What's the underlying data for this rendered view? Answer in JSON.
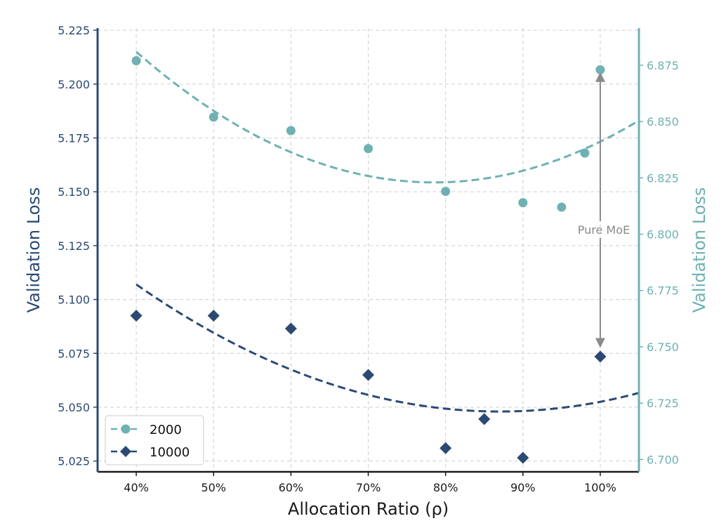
{
  "chart_data": {
    "type": "scatter",
    "title": "",
    "xlabel": "Allocation Ratio (ρ)",
    "ylabel_left": "Validation Loss",
    "ylabel_right": "Validation Loss",
    "x_ticks": [
      40,
      50,
      60,
      70,
      80,
      90,
      100
    ],
    "x_tick_labels": [
      "40%",
      "50%",
      "60%",
      "70%",
      "80%",
      "90%",
      "100%"
    ],
    "xlim": [
      35,
      105
    ],
    "ylim_left": [
      5.02,
      5.226
    ],
    "ylim_right": [
      6.6945,
      6.8915
    ],
    "y_left_ticks": [
      "5.025",
      "5.050",
      "5.075",
      "5.100",
      "5.125",
      "5.150",
      "5.175",
      "5.200",
      "5.225"
    ],
    "y_right_ticks": [
      "6.700",
      "6.725",
      "6.750",
      "6.775",
      "6.800",
      "6.825",
      "6.850",
      "6.875"
    ],
    "grid": true,
    "legend_position": "bottom-left",
    "series": [
      {
        "name": "2000",
        "axis": "right",
        "color": "#6fb1b2",
        "marker": "circle",
        "points": [
          {
            "x": 40,
            "y": 6.877
          },
          {
            "x": 50,
            "y": 6.852
          },
          {
            "x": 60,
            "y": 6.846
          },
          {
            "x": 70,
            "y": 6.838
          },
          {
            "x": 80,
            "y": 6.819
          },
          {
            "x": 90,
            "y": 6.814
          },
          {
            "x": 95,
            "y": 6.812
          },
          {
            "x": 98,
            "y": 6.836
          },
          {
            "x": 100,
            "y": 6.873
          }
        ],
        "fit": {
          "x_min": 40,
          "x_max": 105,
          "x_vertex": 78.5,
          "y_vertex": 6.823,
          "y_at_min": 6.881
        }
      },
      {
        "name": "10000",
        "axis": "left",
        "color": "#2b4a73",
        "marker": "diamond",
        "points": [
          {
            "x": 40,
            "y": 5.0925
          },
          {
            "x": 50,
            "y": 5.0925
          },
          {
            "x": 60,
            "y": 5.0865
          },
          {
            "x": 70,
            "y": 5.065
          },
          {
            "x": 80,
            "y": 5.031
          },
          {
            "x": 85,
            "y": 5.0445
          },
          {
            "x": 90,
            "y": 5.0265
          },
          {
            "x": 100,
            "y": 5.0735
          }
        ],
        "fit": {
          "x_min": 40,
          "x_max": 105,
          "x_vertex": 87,
          "y_vertex": 5.048,
          "y_at_min": 5.107
        }
      }
    ],
    "annotations": [
      {
        "text": "Pure MoE",
        "x": 100,
        "arrow_from_y_right": 6.802,
        "arrow_to_top_y_right": 6.8715,
        "arrow_to_bottom_y_left": 5.078
      }
    ]
  }
}
